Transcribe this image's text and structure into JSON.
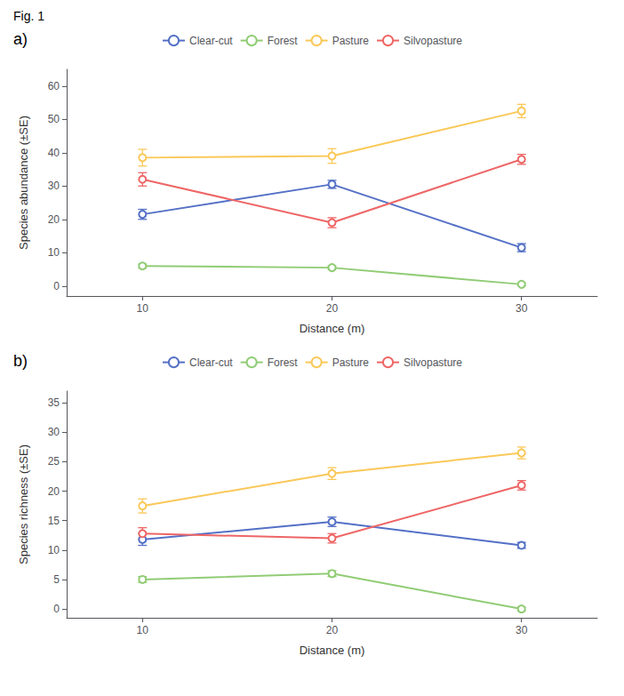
{
  "title": "Fig. 1",
  "chart_data": [
    {
      "type": "line",
      "title": "a)",
      "xlabel": "Distance (m)",
      "ylabel": "Species abundance (±SE)",
      "x": [
        10,
        20,
        30
      ],
      "xlim": [
        6,
        34
      ],
      "xticks": [
        10,
        20,
        30
      ],
      "ylim": [
        -3,
        65
      ],
      "yticks": [
        0,
        10,
        20,
        30,
        40,
        50,
        60
      ],
      "grid": false,
      "legend": "top",
      "marker": "circle",
      "series": [
        {
          "name": "Clear-cut",
          "values": [
            21.5,
            30.5,
            11.5
          ],
          "yerr": [
            1.5,
            1.2,
            1.2
          ]
        },
        {
          "name": "Forest",
          "values": [
            6.0,
            5.5,
            0.5
          ],
          "yerr": [
            0.6,
            0.5,
            0.4
          ]
        },
        {
          "name": "Pasture",
          "values": [
            38.5,
            39.0,
            52.5
          ],
          "yerr": [
            2.5,
            2.2,
            2.0
          ]
        },
        {
          "name": "Silvopasture",
          "values": [
            32.0,
            19.0,
            38.0
          ],
          "yerr": [
            2.0,
            1.5,
            1.5
          ]
        }
      ]
    },
    {
      "type": "line",
      "title": "b)",
      "xlabel": "Distance (m)",
      "ylabel": "Species richness (±SE)",
      "x": [
        10,
        20,
        30
      ],
      "xlim": [
        6,
        34
      ],
      "xticks": [
        10,
        20,
        30
      ],
      "ylim": [
        -1.5,
        37
      ],
      "yticks": [
        0,
        5,
        10,
        15,
        20,
        25,
        30,
        35
      ],
      "grid": false,
      "legend": "top",
      "marker": "circle",
      "series": [
        {
          "name": "Clear-cut",
          "values": [
            11.8,
            14.8,
            10.8
          ],
          "yerr": [
            1.0,
            0.8,
            0.5
          ]
        },
        {
          "name": "Forest",
          "values": [
            5.0,
            6.0,
            0.0
          ],
          "yerr": [
            0.5,
            0.5,
            0.3
          ]
        },
        {
          "name": "Pasture",
          "values": [
            17.5,
            23.0,
            26.5
          ],
          "yerr": [
            1.2,
            1.0,
            1.0
          ]
        },
        {
          "name": "Silvopasture",
          "values": [
            12.8,
            12.0,
            21.0
          ],
          "yerr": [
            1.0,
            0.8,
            0.8
          ]
        }
      ]
    }
  ]
}
